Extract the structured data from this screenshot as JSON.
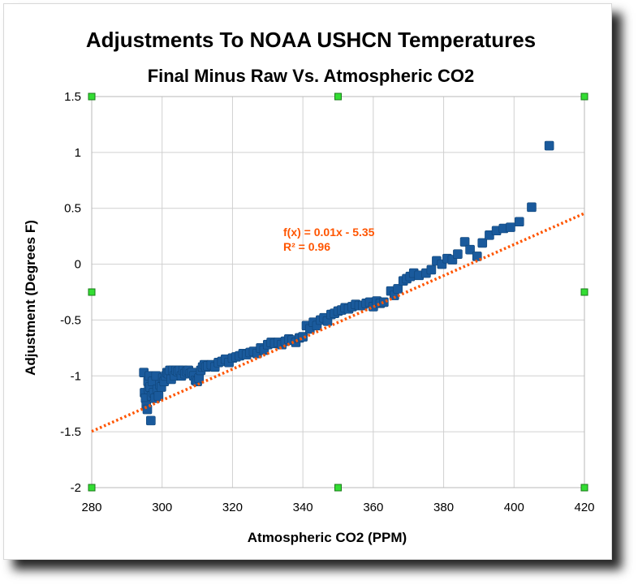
{
  "chart_data": {
    "type": "scatter",
    "title": "Adjustments To NOAA USHCN Temperatures",
    "subtitle": "Final Minus Raw Vs. Atmospheric CO2",
    "xlabel": "Atmospheric CO2 (PPM)",
    "ylabel": "Adjustment (Degrees F)",
    "xlim": [
      280,
      420
    ],
    "ylim": [
      -2,
      1.5
    ],
    "x_ticks": [
      "280",
      "300",
      "320",
      "340",
      "360",
      "380",
      "400",
      "420"
    ],
    "y_ticks": [
      "1.5",
      "1",
      "0.5",
      "0",
      "-0.5",
      "-1",
      "-1.5",
      "-2"
    ],
    "grid": true,
    "legend": "none",
    "colors": {
      "points": "#1a5a9c",
      "trendline": "#ff5500",
      "grid": "#d0d0d0",
      "handles": "#33dd33"
    },
    "trendline": {
      "equation": "f(x) = 0.01x - 5.35",
      "r_squared": "R² = 0.96",
      "slope": 0.01394,
      "intercept": -5.4
    },
    "series": [
      {
        "points": [
          [
            294.8,
            -0.97
          ],
          [
            295.0,
            -1.15
          ],
          [
            295.3,
            -1.2
          ],
          [
            295.5,
            -1.27
          ],
          [
            295.8,
            -1.3
          ],
          [
            296.0,
            -1.05
          ],
          [
            296.2,
            -1.12
          ],
          [
            296.4,
            -1.0
          ],
          [
            296.6,
            -1.1
          ],
          [
            296.8,
            -1.4
          ],
          [
            297.0,
            -1.18
          ],
          [
            297.3,
            -1.05
          ],
          [
            297.6,
            -1.15
          ],
          [
            298.0,
            -1.2
          ],
          [
            298.3,
            -1.0
          ],
          [
            298.6,
            -1.12
          ],
          [
            299.0,
            -1.18
          ],
          [
            299.4,
            -1.08
          ],
          [
            299.8,
            -1.1
          ],
          [
            300.2,
            -1.02
          ],
          [
            300.6,
            -1.05
          ],
          [
            301.0,
            -1.0
          ],
          [
            301.4,
            -0.97
          ],
          [
            301.8,
            -0.98
          ],
          [
            302.2,
            -0.95
          ],
          [
            302.6,
            -1.03
          ],
          [
            303.0,
            -0.95
          ],
          [
            303.5,
            -1.0
          ],
          [
            304.0,
            -0.95
          ],
          [
            304.5,
            -0.96
          ],
          [
            305.0,
            -0.95
          ],
          [
            305.5,
            -1.0
          ],
          [
            306.0,
            -0.95
          ],
          [
            306.5,
            -0.98
          ],
          [
            307.0,
            -0.96
          ],
          [
            307.5,
            -0.95
          ],
          [
            308.0,
            -0.98
          ],
          [
            308.5,
            -0.97
          ],
          [
            309.0,
            -1.0
          ],
          [
            309.5,
            -1.04
          ],
          [
            310.0,
            -1.05
          ],
          [
            310.5,
            -1.02
          ],
          [
            311.0,
            -0.95
          ],
          [
            311.5,
            -0.92
          ],
          [
            312.0,
            -0.9
          ],
          [
            312.5,
            -0.92
          ],
          [
            313.0,
            -0.91
          ],
          [
            314.0,
            -0.9
          ],
          [
            315.0,
            -0.92
          ],
          [
            316.0,
            -0.88
          ],
          [
            317.0,
            -0.87
          ],
          [
            318.0,
            -0.85
          ],
          [
            319.0,
            -0.88
          ],
          [
            320.0,
            -0.84
          ],
          [
            321.0,
            -0.83
          ],
          [
            322.0,
            -0.82
          ],
          [
            323.0,
            -0.8
          ],
          [
            324.0,
            -0.81
          ],
          [
            325.0,
            -0.79
          ],
          [
            326.0,
            -0.78
          ],
          [
            327.0,
            -0.8
          ],
          [
            328.0,
            -0.75
          ],
          [
            329.0,
            -0.77
          ],
          [
            330.0,
            -0.72
          ],
          [
            331.0,
            -0.7
          ],
          [
            332.0,
            -0.71
          ],
          [
            333.0,
            -0.7
          ],
          [
            334.0,
            -0.72
          ],
          [
            335.0,
            -0.69
          ],
          [
            336.0,
            -0.67
          ],
          [
            337.0,
            -0.68
          ],
          [
            338.0,
            -0.7
          ],
          [
            339.0,
            -0.66
          ],
          [
            340.0,
            -0.65
          ],
          [
            341.0,
            -0.55
          ],
          [
            342.0,
            -0.58
          ],
          [
            343.0,
            -0.52
          ],
          [
            344.0,
            -0.55
          ],
          [
            345.0,
            -0.5
          ],
          [
            346.0,
            -0.48
          ],
          [
            347.0,
            -0.51
          ],
          [
            348.0,
            -0.45
          ],
          [
            349.0,
            -0.44
          ],
          [
            350.0,
            -0.42
          ],
          [
            351.0,
            -0.41
          ],
          [
            352.0,
            -0.39
          ],
          [
            353.0,
            -0.4
          ],
          [
            354.0,
            -0.38
          ],
          [
            355.0,
            -0.36
          ],
          [
            356.0,
            -0.37
          ],
          [
            357.0,
            -0.37
          ],
          [
            358.0,
            -0.35
          ],
          [
            359.0,
            -0.34
          ],
          [
            360.0,
            -0.38
          ],
          [
            361.0,
            -0.33
          ],
          [
            362.0,
            -0.35
          ],
          [
            363.0,
            -0.34
          ],
          [
            365.0,
            -0.24
          ],
          [
            366.0,
            -0.28
          ],
          [
            367.0,
            -0.22
          ],
          [
            368.5,
            -0.15
          ],
          [
            369.5,
            -0.13
          ],
          [
            370.5,
            -0.11
          ],
          [
            371.5,
            -0.08
          ],
          [
            373.0,
            -0.1
          ],
          [
            375.0,
            -0.08
          ],
          [
            376.5,
            -0.05
          ],
          [
            378.0,
            0.03
          ],
          [
            379.5,
            0.0
          ],
          [
            381.0,
            0.05
          ],
          [
            382.5,
            0.04
          ],
          [
            384.0,
            0.09
          ],
          [
            386.0,
            0.2
          ],
          [
            387.5,
            0.13
          ],
          [
            389.5,
            0.07
          ],
          [
            391.0,
            0.19
          ],
          [
            393.0,
            0.26
          ],
          [
            395.0,
            0.3
          ],
          [
            397.0,
            0.32
          ],
          [
            399.0,
            0.33
          ],
          [
            401.5,
            0.38
          ],
          [
            405.0,
            0.51
          ],
          [
            410.0,
            1.06
          ]
        ]
      }
    ]
  }
}
